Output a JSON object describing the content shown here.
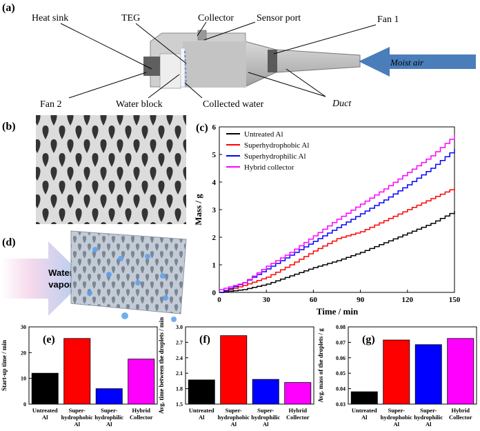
{
  "panel_a": {
    "tag": "(a)",
    "labels": {
      "heat_sink": "Heat sink",
      "teg": "TEG",
      "collector": "Collector",
      "sensor_port": "Sensor port",
      "fan1": "Fan 1",
      "fan2": "Fan 2",
      "water_block": "Water block",
      "collected_water": "Collected water",
      "duct": "Duct",
      "moist_air": "Moist air"
    },
    "colors": {
      "arrow": "#4a7ebb",
      "duct": "#b8b8b8"
    }
  },
  "panel_b": {
    "tag": "(b)"
  },
  "panel_d": {
    "tag": "(d)",
    "arrow_line1": "Water",
    "arrow_line2": "vapor"
  },
  "colors": {
    "untreated": "#000000",
    "superhydrophobic": "#ff0000",
    "superhydrophilic": "#0000ff",
    "hybrid": "#ff00ff"
  },
  "chart_data": [
    {
      "id": "c",
      "tag": "(c)",
      "type": "line",
      "xlabel": "Time / min",
      "ylabel": "Mass / g",
      "xlim": [
        0,
        150
      ],
      "ylim": [
        0,
        6
      ],
      "xticks": [
        "0",
        "30",
        "60",
        "90",
        "120",
        "150"
      ],
      "yticks": [
        "0",
        "1",
        "2",
        "3",
        "4",
        "5",
        "6"
      ],
      "legend_position": "top-left",
      "x": [
        0,
        15,
        30,
        45,
        60,
        75,
        90,
        105,
        120,
        135,
        150
      ],
      "series": [
        {
          "name": "Untreated Al",
          "color": "#000000",
          "values": [
            0,
            0.1,
            0.3,
            0.6,
            0.9,
            1.15,
            1.45,
            1.8,
            2.15,
            2.5,
            2.95
          ]
        },
        {
          "name": "Superhydrophobic Al",
          "color": "#ff0000",
          "values": [
            0,
            0.25,
            0.55,
            1.0,
            1.5,
            1.95,
            2.2,
            2.6,
            3.0,
            3.4,
            3.8
          ]
        },
        {
          "name": "Superhydrophilic Al",
          "color": "#0000ff",
          "values": [
            0,
            0.35,
            0.85,
            1.35,
            1.85,
            2.35,
            2.85,
            3.35,
            3.9,
            4.5,
            5.2
          ]
        },
        {
          "name": "Hybrid collector",
          "color": "#ff00ff",
          "values": [
            0.1,
            0.35,
            0.95,
            1.45,
            2.05,
            2.65,
            3.2,
            3.75,
            4.35,
            4.95,
            5.7
          ]
        }
      ]
    },
    {
      "id": "e",
      "tag": "(e)",
      "type": "bar",
      "ylabel": "Start-up time / min",
      "ylim": [
        0,
        30
      ],
      "yticks": [
        "0",
        "10",
        "20",
        "30"
      ],
      "categories": [
        [
          "Untreated",
          "Al"
        ],
        [
          "Super-",
          "hydrophobic",
          "Al"
        ],
        [
          "Super-",
          "hydrophilic",
          "Al"
        ],
        [
          "Hybrid",
          "Collector"
        ]
      ],
      "values": [
        12,
        25.5,
        6,
        17.5
      ],
      "colors": [
        "#000000",
        "#ff0000",
        "#0000ff",
        "#ff00ff"
      ]
    },
    {
      "id": "f",
      "tag": "(f)",
      "type": "bar",
      "ylabel": "Avg. time between the droplets / min",
      "ylim": [
        1.5,
        3.0
      ],
      "yticks": [
        "1.5",
        "1.8",
        "2.1",
        "2.4",
        "2.7",
        "3.0"
      ],
      "categories": [
        [
          "Untreated",
          "Al"
        ],
        [
          "Super-",
          "hydrophobic",
          "Al"
        ],
        [
          "Super-",
          "hydrophilic",
          "Al"
        ],
        [
          "Hybrid",
          "Collector"
        ]
      ],
      "values": [
        1.97,
        2.83,
        1.98,
        1.92
      ],
      "colors": [
        "#000000",
        "#ff0000",
        "#0000ff",
        "#ff00ff"
      ]
    },
    {
      "id": "g",
      "tag": "(g)",
      "type": "bar",
      "ylabel": "Avg. mass of the droplets / g",
      "ylim": [
        0.03,
        0.08
      ],
      "yticks": [
        "0.03",
        "0.04",
        "0.05",
        "0.06",
        "0.07",
        "0.08"
      ],
      "categories": [
        [
          "Untreated",
          "Al"
        ],
        [
          "Super-",
          "hydrophobic",
          "Al"
        ],
        [
          "Super-",
          "hydrophilic",
          "Al"
        ],
        [
          "Hybrid",
          "Collector"
        ]
      ],
      "values": [
        0.038,
        0.0715,
        0.0685,
        0.0725
      ],
      "colors": [
        "#000000",
        "#ff0000",
        "#0000ff",
        "#ff00ff"
      ]
    }
  ]
}
